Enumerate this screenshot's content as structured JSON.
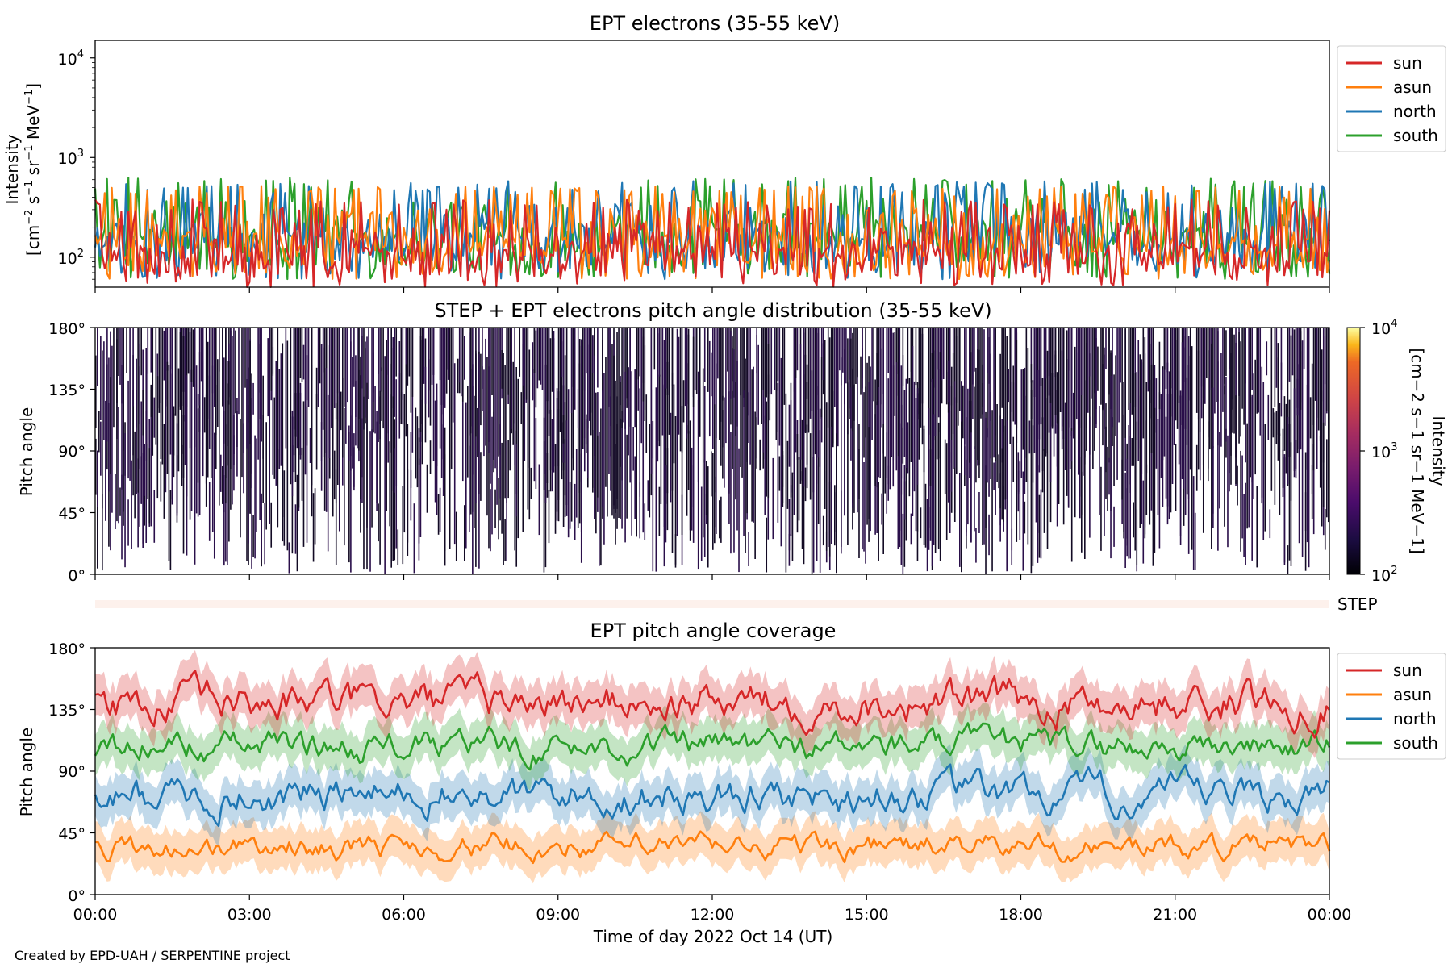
{
  "footer_text": "Created by EPD-UAH / SERPENTINE project",
  "colors": {
    "sun": "#d62728",
    "asun": "#ff7f0e",
    "north": "#1f77b4",
    "south": "#2ca02c",
    "pad_dark": "#1a0b2e",
    "step_strip": "#fdf1ec"
  },
  "panel1": {
    "title": "EPT electrons (35-55 keV)",
    "ylabel_line1": "Intensity",
    "ylabel_line2_parts": [
      "[cm",
      "−2",
      " s",
      "−1",
      " sr",
      "−1",
      " MeV",
      "−1",
      "]"
    ],
    "yticks": [
      {
        "base": "10",
        "exp": "2"
      },
      {
        "base": "10",
        "exp": "3"
      },
      {
        "base": "10",
        "exp": "4"
      }
    ],
    "legend": [
      "sun",
      "asun",
      "north",
      "south"
    ]
  },
  "panel2": {
    "title": "STEP + EPT electrons pitch angle distribution (35-55 keV)",
    "ylabel": "Pitch angle",
    "yticks": [
      "0°",
      "45°",
      "90°",
      "135°",
      "180°"
    ],
    "colorbar_ticks": [
      {
        "base": "10",
        "exp": "2"
      },
      {
        "base": "10",
        "exp": "3"
      },
      {
        "base": "10",
        "exp": "4"
      }
    ],
    "colorbar_label_line1": "Intensity",
    "colorbar_label_line2": "[cm−2 s−1 sr−1 MeV−1]"
  },
  "step_strip_label": "STEP",
  "panel3": {
    "title": "EPT pitch angle coverage",
    "ylabel": "Pitch angle",
    "yticks": [
      "0°",
      "45°",
      "90°",
      "135°",
      "180°"
    ],
    "legend": [
      "sun",
      "asun",
      "north",
      "south"
    ]
  },
  "xaxis": {
    "ticks": [
      "00:00",
      "03:00",
      "06:00",
      "09:00",
      "12:00",
      "15:00",
      "18:00",
      "21:00",
      "00:00"
    ],
    "label": "Time of day 2022 Oct 14 (UT)"
  },
  "chart_data": [
    {
      "type": "line",
      "title": "EPT electrons (35-55 keV)",
      "ylabel": "Intensity [cm−2 s−1 sr−1 MeV−1]",
      "xlabel": "",
      "y_scale": "log",
      "ylim": [
        50,
        15000
      ],
      "xlim": [
        "2022-10-14 00:00",
        "2022-10-15 00:00"
      ],
      "legend_position": "outside-right-top",
      "series": [
        {
          "name": "sun",
          "color": "#d62728",
          "typical_range": [
            50,
            380
          ]
        },
        {
          "name": "asun",
          "color": "#ff7f0e",
          "typical_range": [
            50,
            500
          ]
        },
        {
          "name": "north",
          "color": "#1f77b4",
          "typical_range": [
            50,
            550
          ]
        },
        {
          "name": "south",
          "color": "#2ca02c",
          "typical_range": [
            50,
            650
          ]
        }
      ]
    },
    {
      "type": "heatmap",
      "title": "STEP + EPT electrons pitch angle distribution (35-55 keV)",
      "ylabel": "Pitch angle",
      "ylim": [
        0,
        180
      ],
      "colorbar": {
        "scale": "log",
        "range": [
          100,
          10000
        ],
        "colormap": "inferno"
      },
      "note_values": "intensity mostly near 100-300 (dark purple)"
    },
    {
      "type": "line",
      "title": "EPT pitch angle coverage",
      "ylabel": "Pitch angle",
      "xlabel": "Time of day 2022 Oct 14 (UT)",
      "ylim": [
        0,
        180
      ],
      "legend_position": "outside-right-top",
      "series": [
        {
          "name": "sun",
          "color": "#d62728",
          "typical_mean": 140,
          "typical_range": [
            60,
            180
          ]
        },
        {
          "name": "asun",
          "color": "#ff7f0e",
          "typical_mean": 35,
          "typical_range": [
            0,
            100
          ]
        },
        {
          "name": "north",
          "color": "#1f77b4",
          "typical_mean": 72,
          "typical_range": [
            0,
            170
          ]
        },
        {
          "name": "south",
          "color": "#2ca02c",
          "typical_mean": 110,
          "typical_range": [
            20,
            180
          ]
        }
      ]
    }
  ]
}
